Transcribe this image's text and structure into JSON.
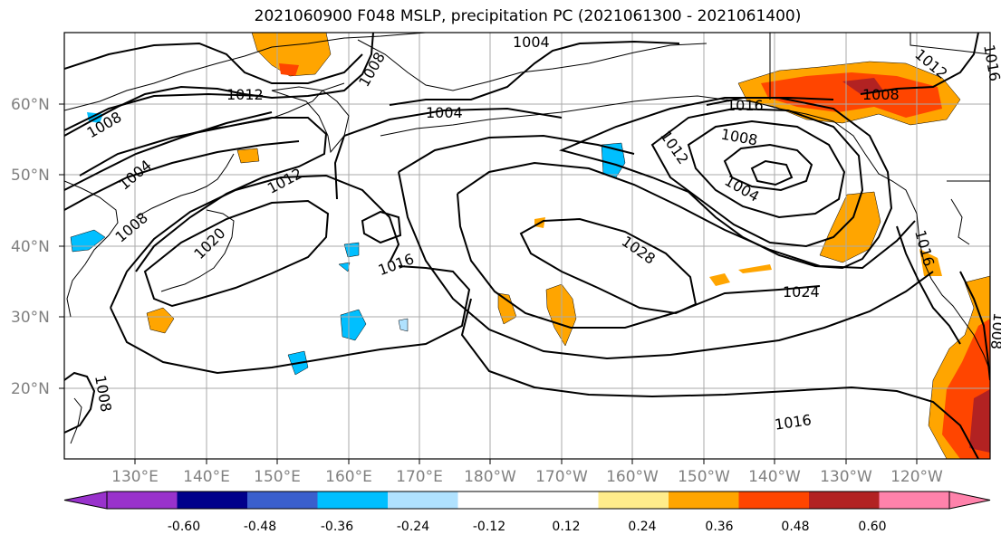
{
  "title": "2021060900 F048 MSLP, precipitation PC (2021061300 - 2021061400)",
  "lat_labels": [
    "60°N",
    "50°N",
    "40°N",
    "30°N",
    "20°N"
  ],
  "lon_labels": [
    "130°E",
    "140°E",
    "150°E",
    "160°E",
    "170°E",
    "180°W",
    "170°W",
    "160°W",
    "150°W",
    "140°W",
    "130°W",
    "120°W"
  ],
  "isobar_labels": [
    {
      "text": "1004",
      "id": "1004-a"
    },
    {
      "text": "1008",
      "id": "1008-a"
    },
    {
      "text": "1012",
      "id": "1012-a"
    },
    {
      "text": "1008",
      "id": "1008-b"
    },
    {
      "text": "1004",
      "id": "1004-b"
    },
    {
      "text": "1004",
      "id": "1004-c"
    },
    {
      "text": "1008",
      "id": "1008-c"
    },
    {
      "text": "1012",
      "id": "1012-b"
    },
    {
      "text": "1020",
      "id": "1020-a"
    },
    {
      "text": "1016",
      "id": "1016-a"
    },
    {
      "text": "1016",
      "id": "1016-b"
    },
    {
      "text": "1008",
      "id": "1008-d"
    },
    {
      "text": "1012",
      "id": "1012-c"
    },
    {
      "text": "1004",
      "id": "1004-d"
    },
    {
      "text": "1028",
      "id": "1028-a"
    },
    {
      "text": "1024",
      "id": "1024-a"
    },
    {
      "text": "1016",
      "id": "1016-c"
    },
    {
      "text": "1008",
      "id": "1008-e"
    },
    {
      "text": "1012",
      "id": "1012-d"
    },
    {
      "text": "1016",
      "id": "1016-d"
    },
    {
      "text": "1016",
      "id": "1016-e"
    },
    {
      "text": "1008",
      "id": "1008-f"
    },
    {
      "text": "1008",
      "id": "1008-g"
    }
  ],
  "colorbar": {
    "colors": [
      "#9932CC",
      "#00008B",
      "#3A5FCD",
      "#00BFFF",
      "#B0E2FF",
      "#FFFFFF",
      "#FFFFFF",
      "#FFEC8B",
      "#FFA500",
      "#FF4500",
      "#B22222",
      "#FF82AB"
    ],
    "tick_labels": [
      "-0.60",
      "-0.48",
      "-0.36",
      "-0.24",
      "-0.12",
      "0.12",
      "0.24",
      "0.36",
      "0.48",
      "0.60"
    ]
  },
  "colors": {
    "grid": "#aaaaaa",
    "isobar": "#000000",
    "coast": "#000000",
    "wet_weak": "#FFEC8B",
    "wet_mid": "#FFA500",
    "wet_strong": "#FF4500",
    "wet_max": "#B22222",
    "dry_light": "#B0E2FF",
    "dry_mid": "#00BFFF"
  }
}
